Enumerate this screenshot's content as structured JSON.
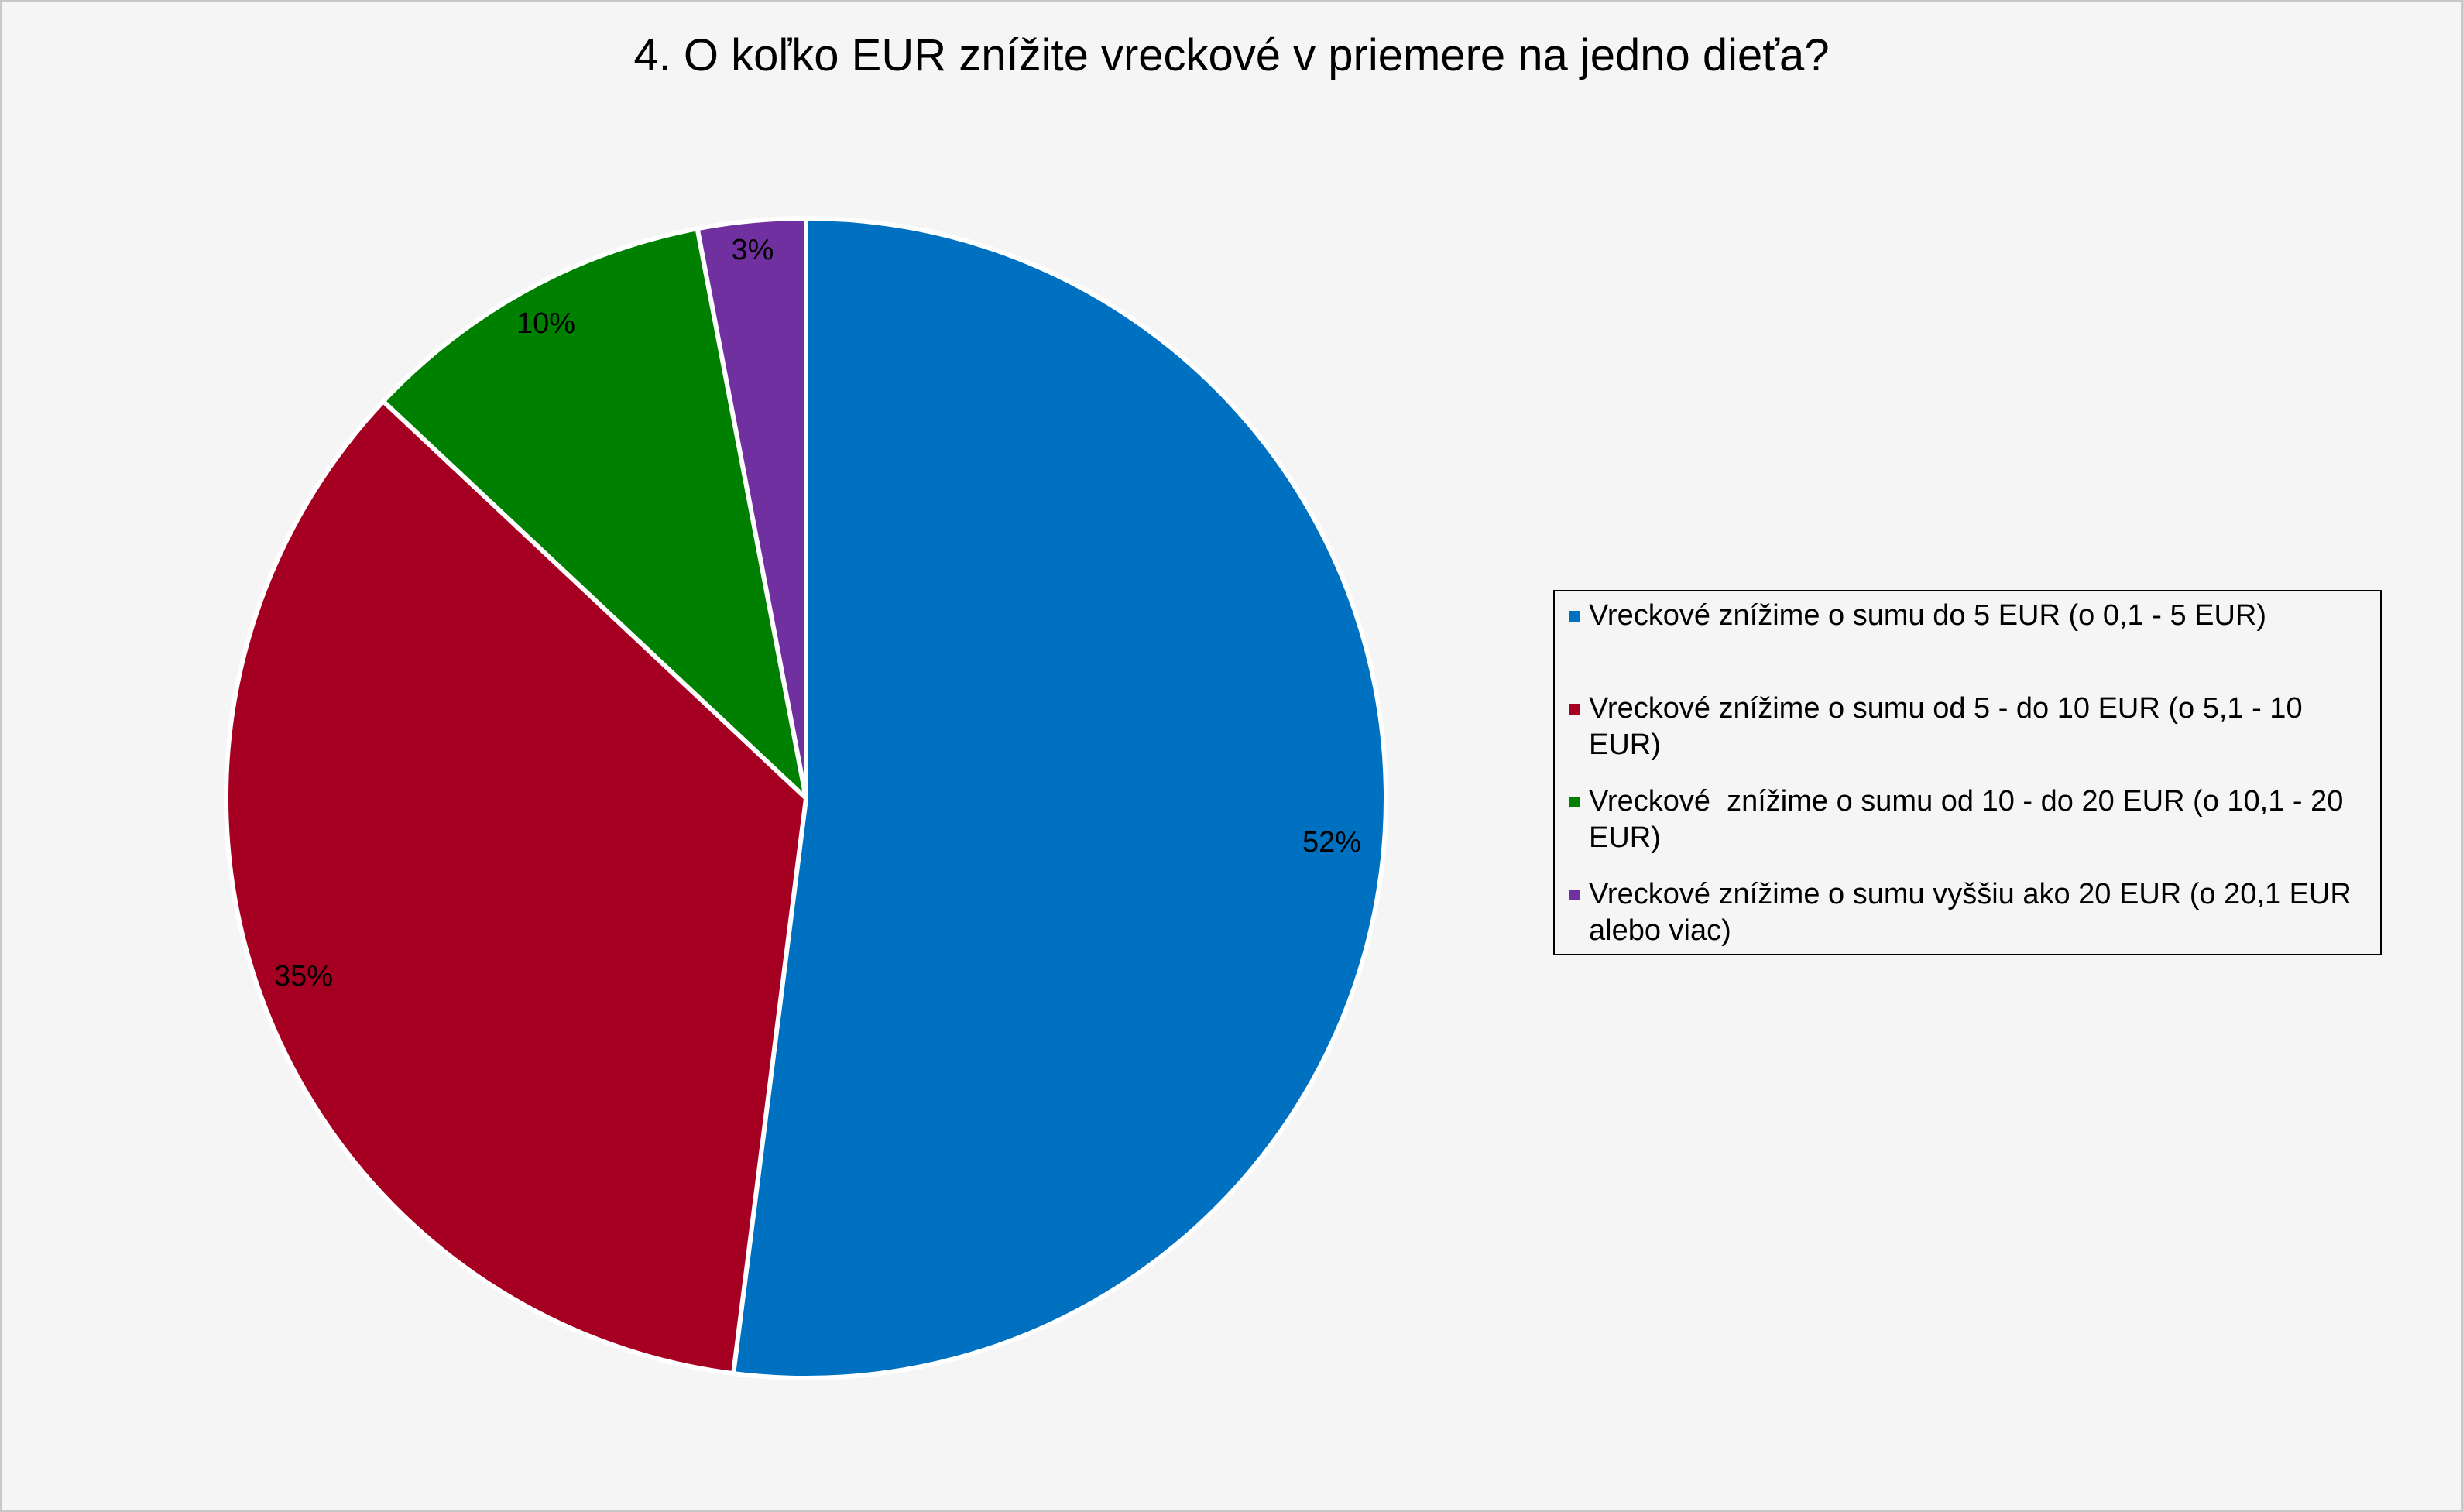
{
  "chart_data": {
    "type": "pie",
    "title": "4. O koľko EUR znížite vreckové v priemere na jedno dieťa?",
    "categories": [
      "Vreckové znížime o sumu do 5 EUR (o 0,1 - 5 EUR)",
      "Vreckové znížime o sumu od 5 - do 10 EUR (o 5,1 - 10 EUR)",
      "Vreckové  znížime o sumu od 10 - do 20 EUR (o 10,1 - 20 EUR)",
      "Vreckové znížime o sumu vyššiu ako 20 EUR (o 20,1 EUR alebo viac)"
    ],
    "values": [
      52,
      35,
      10,
      3
    ],
    "data_labels": [
      "52%",
      "35%",
      "10%",
      "3%"
    ],
    "colors": [
      "#0070c0",
      "#a50021",
      "#008000",
      "#7030a0"
    ],
    "slice_border_color": "#ffffff",
    "start_angle": "12 o'clock",
    "direction": "clockwise",
    "legend_position": "right"
  }
}
